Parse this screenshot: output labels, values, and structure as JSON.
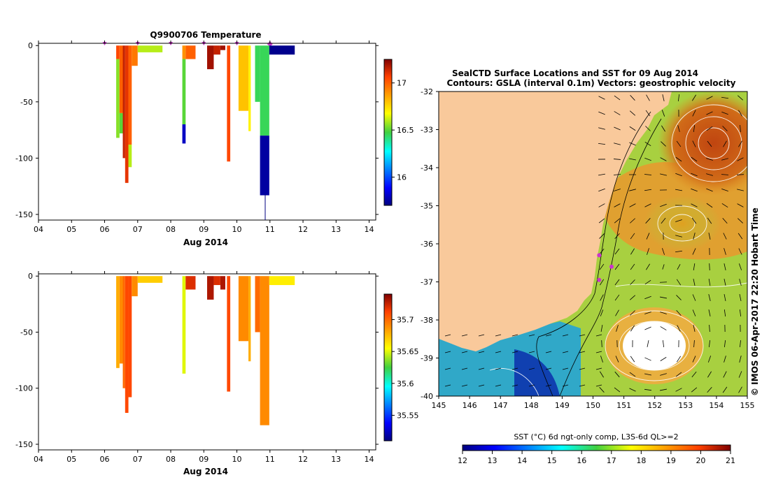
{
  "colors": {
    "land": "#f9c99b",
    "frame": "#000000",
    "marker": "#cc33cc"
  },
  "chart_data": [
    {
      "type": "heatmap",
      "title": "Q9900706  Temperature",
      "xlabel": "Aug 2014",
      "ylabel": "",
      "x_tick_labels": [
        "04",
        "05",
        "06",
        "07",
        "08",
        "09",
        "10",
        "11",
        "12",
        "13",
        "14"
      ],
      "xlim": [
        4,
        14.2
      ],
      "y_ticks": [
        0,
        -50,
        -100,
        -150
      ],
      "ylim": [
        -155,
        2
      ],
      "colorbar": {
        "min": 15.7,
        "max": 17.25,
        "ticks": [
          17,
          16.5,
          16
        ],
        "colormap": "jet"
      },
      "profile_markers_x": [
        6.0,
        7.0,
        8.0,
        9.0,
        10.0,
        11.0
      ],
      "profiles": [
        {
          "x0": 6.35,
          "x1": 6.45,
          "d0": 0,
          "d1": -12,
          "value": 17.05
        },
        {
          "x0": 6.35,
          "x1": 6.45,
          "d0": -12,
          "d1": -82,
          "value": 16.55
        },
        {
          "x0": 6.45,
          "x1": 6.55,
          "d0": 0,
          "d1": -60,
          "value": 17.0
        },
        {
          "x0": 6.45,
          "x1": 6.55,
          "d0": -60,
          "d1": -78,
          "value": 16.5
        },
        {
          "x0": 6.55,
          "x1": 6.62,
          "d0": 0,
          "d1": -100,
          "value": 17.15
        },
        {
          "x0": 6.62,
          "x1": 6.72,
          "d0": 0,
          "d1": -122,
          "value": 17.1
        },
        {
          "x0": 6.72,
          "x1": 6.82,
          "d0": 0,
          "d1": -88,
          "value": 17.0
        },
        {
          "x0": 6.72,
          "x1": 6.82,
          "d0": -88,
          "d1": -108,
          "value": 16.6
        },
        {
          "x0": 6.82,
          "x1": 7.0,
          "d0": 0,
          "d1": -18,
          "value": 16.95
        },
        {
          "x0": 7.0,
          "x1": 7.75,
          "d0": 0,
          "d1": -6,
          "value": 16.6
        },
        {
          "x0": 8.35,
          "x1": 8.45,
          "d0": 0,
          "d1": -12,
          "value": 16.9
        },
        {
          "x0": 8.35,
          "x1": 8.45,
          "d0": -12,
          "d1": -70,
          "value": 16.5
        },
        {
          "x0": 8.35,
          "x1": 8.45,
          "d0": -70,
          "d1": -87,
          "value": 15.8
        },
        {
          "x0": 8.45,
          "x1": 8.75,
          "d0": 0,
          "d1": -12,
          "value": 17.0
        },
        {
          "x0": 9.1,
          "x1": 9.3,
          "d0": 0,
          "d1": -21,
          "value": 17.2
        },
        {
          "x0": 9.3,
          "x1": 9.5,
          "d0": 0,
          "d1": -8,
          "value": 17.15
        },
        {
          "x0": 9.5,
          "x1": 9.65,
          "d0": 0,
          "d1": -4,
          "value": 17.2
        },
        {
          "x0": 9.7,
          "x1": 9.8,
          "d0": 0,
          "d1": -103,
          "value": 17.05
        },
        {
          "x0": 10.05,
          "x1": 10.35,
          "d0": 0,
          "d1": -58,
          "value": 16.8
        },
        {
          "x0": 10.35,
          "x1": 10.42,
          "d0": 0,
          "d1": -76,
          "value": 16.7
        },
        {
          "x0": 10.55,
          "x1": 10.7,
          "d0": 0,
          "d1": -50,
          "value": 16.45
        },
        {
          "x0": 10.7,
          "x1": 10.98,
          "d0": 0,
          "d1": -80,
          "value": 16.45
        },
        {
          "x0": 10.7,
          "x1": 10.98,
          "d0": -80,
          "d1": -133,
          "value": 15.75
        },
        {
          "x0": 10.98,
          "x1": 11.75,
          "d0": 0,
          "d1": -8,
          "value": 15.72
        }
      ]
    },
    {
      "type": "heatmap",
      "title": "",
      "xlabel": "Aug 2014",
      "ylabel": "",
      "x_tick_labels": [
        "04",
        "05",
        "06",
        "07",
        "08",
        "09",
        "10",
        "11",
        "12",
        "13",
        "14"
      ],
      "xlim": [
        4,
        14.2
      ],
      "y_ticks": [
        0,
        -50,
        -100,
        -150
      ],
      "ylim": [
        -155,
        2
      ],
      "colorbar": {
        "min": 35.51,
        "max": 35.74,
        "ticks": [
          35.7,
          35.65,
          35.6,
          35.55
        ],
        "colormap": "jet"
      },
      "profiles": [
        {
          "x0": 6.35,
          "x1": 6.45,
          "d0": 0,
          "d1": -82,
          "value": 35.68
        },
        {
          "x0": 6.45,
          "x1": 6.55,
          "d0": 0,
          "d1": -78,
          "value": 35.69
        },
        {
          "x0": 6.55,
          "x1": 6.62,
          "d0": 0,
          "d1": -100,
          "value": 35.7
        },
        {
          "x0": 6.62,
          "x1": 6.72,
          "d0": 0,
          "d1": -122,
          "value": 35.71
        },
        {
          "x0": 6.72,
          "x1": 6.82,
          "d0": 0,
          "d1": -108,
          "value": 35.71
        },
        {
          "x0": 6.82,
          "x1": 7.0,
          "d0": 0,
          "d1": -18,
          "value": 35.69
        },
        {
          "x0": 7.0,
          "x1": 7.75,
          "d0": 0,
          "d1": -6,
          "value": 35.67
        },
        {
          "x0": 8.35,
          "x1": 8.45,
          "d0": 0,
          "d1": -87,
          "value": 35.65
        },
        {
          "x0": 8.45,
          "x1": 8.75,
          "d0": 0,
          "d1": -12,
          "value": 35.72
        },
        {
          "x0": 9.1,
          "x1": 9.3,
          "d0": 0,
          "d1": -21,
          "value": 35.73
        },
        {
          "x0": 9.3,
          "x1": 9.5,
          "d0": 0,
          "d1": -8,
          "value": 35.72
        },
        {
          "x0": 9.5,
          "x1": 9.65,
          "d0": 0,
          "d1": -12,
          "value": 35.73
        },
        {
          "x0": 9.7,
          "x1": 9.8,
          "d0": 0,
          "d1": -103,
          "value": 35.71
        },
        {
          "x0": 10.05,
          "x1": 10.35,
          "d0": 0,
          "d1": -58,
          "value": 35.69
        },
        {
          "x0": 10.35,
          "x1": 10.42,
          "d0": 0,
          "d1": -76,
          "value": 35.68
        },
        {
          "x0": 10.55,
          "x1": 10.7,
          "d0": 0,
          "d1": -50,
          "value": 35.7
        },
        {
          "x0": 10.7,
          "x1": 10.98,
          "d0": 0,
          "d1": -133,
          "value": 35.69
        },
        {
          "x0": 10.98,
          "x1": 11.75,
          "d0": 0,
          "d1": -8,
          "value": 35.66
        }
      ]
    },
    {
      "type": "heatmap",
      "title": "SealCTD Surface Locations and SST for 09 Aug 2014",
      "subtitle": "Contours: GSLA (interval 0.1m) Vectors: geostrophic velocity",
      "x_tick_labels": [
        "145",
        "146",
        "147",
        "148",
        "149",
        "150",
        "151",
        "152",
        "153",
        "154",
        "155"
      ],
      "y_tick_labels": [
        "-32",
        "-33",
        "-34",
        "-35",
        "-36",
        "-37",
        "-38",
        "-39",
        "-40"
      ],
      "xlim": [
        145,
        155
      ],
      "ylim": [
        -40,
        -32
      ],
      "colorbar": {
        "label": "SST (°C) 6d ngt-only comp, L3S-6d QL>=2",
        "min": 12,
        "max": 21,
        "ticks": [
          "12",
          "13",
          "14",
          "15",
          "16",
          "17",
          "18",
          "19",
          "20",
          "21"
        ],
        "colormap": "jet"
      },
      "credit": "© IMOS 06-Apr-2017 22:20 Hobart Time",
      "seal_locations": [
        [
          150.2,
          -36.3
        ],
        [
          150.6,
          -36.6
        ],
        [
          150.2,
          -36.95
        ]
      ]
    }
  ]
}
